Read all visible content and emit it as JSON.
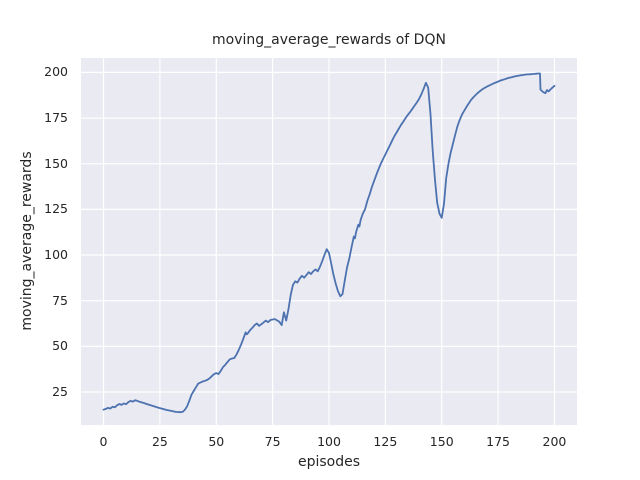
{
  "figure": {
    "title": "moving_average_rewards of DQN",
    "xlabel": "episodes",
    "ylabel": "moving_average_rewards"
  },
  "colors": {
    "figure_bg": "#ffffff",
    "axes_bg": "#eaeaf2",
    "grid": "#ffffff",
    "line": "#4c72b0",
    "text": "#262626"
  },
  "chart_data": {
    "type": "line",
    "title": "moving_average_rewards of DQN",
    "xlabel": "episodes",
    "ylabel": "moving_average_rewards",
    "xlim": [
      -10,
      210
    ],
    "ylim": [
      6.9,
      207.9
    ],
    "xticks": [
      0,
      25,
      50,
      75,
      100,
      125,
      150,
      175,
      200
    ],
    "yticks": [
      25,
      50,
      75,
      100,
      125,
      150,
      175,
      200
    ],
    "grid": true,
    "legend_position": "none",
    "series": [
      {
        "name": "moving_average_rewards",
        "color": "#4c72b0",
        "points": [
          [
            0,
            15.3
          ],
          [
            1,
            15.7
          ],
          [
            2,
            16.3
          ],
          [
            3,
            15.9
          ],
          [
            4,
            16.9
          ],
          [
            5,
            16.6
          ],
          [
            6,
            17.7
          ],
          [
            7,
            18.4
          ],
          [
            8,
            17.9
          ],
          [
            9,
            18.7
          ],
          [
            10,
            18.3
          ],
          [
            11,
            19.4
          ],
          [
            12,
            20.1
          ],
          [
            13,
            19.7
          ],
          [
            14,
            20.5
          ],
          [
            15,
            20.1
          ],
          [
            16,
            19.6
          ],
          [
            18,
            18.9
          ],
          [
            20,
            18.1
          ],
          [
            22,
            17.3
          ],
          [
            24,
            16.5
          ],
          [
            26,
            15.8
          ],
          [
            28,
            15.1
          ],
          [
            30,
            14.6
          ],
          [
            32,
            14.1
          ],
          [
            34,
            13.9
          ],
          [
            35,
            14.1
          ],
          [
            36,
            15.1
          ],
          [
            37,
            17.0
          ],
          [
            38,
            20.0
          ],
          [
            39,
            23.5
          ],
          [
            40,
            25.5
          ],
          [
            41,
            27.6
          ],
          [
            42,
            29.6
          ],
          [
            43,
            30.2
          ],
          [
            44,
            30.7
          ],
          [
            45,
            31.1
          ],
          [
            46,
            31.6
          ],
          [
            47,
            32.4
          ],
          [
            48,
            33.6
          ],
          [
            49,
            34.7
          ],
          [
            50,
            35.3
          ],
          [
            51,
            34.8
          ],
          [
            52,
            36.6
          ],
          [
            53,
            38.6
          ],
          [
            54,
            39.9
          ],
          [
            55,
            41.4
          ],
          [
            56,
            42.9
          ],
          [
            57,
            43.3
          ],
          [
            58,
            43.6
          ],
          [
            59,
            45.6
          ],
          [
            60,
            48.1
          ],
          [
            61,
            51.0
          ],
          [
            62,
            54.1
          ],
          [
            63,
            57.6
          ],
          [
            63.5,
            56.6
          ],
          [
            64,
            57.1
          ],
          [
            65,
            58.9
          ],
          [
            66,
            60.1
          ],
          [
            67,
            61.6
          ],
          [
            68,
            62.5
          ],
          [
            69,
            61.2
          ],
          [
            70,
            62.1
          ],
          [
            71,
            63.1
          ],
          [
            72,
            64.1
          ],
          [
            73,
            63.2
          ],
          [
            74,
            64.4
          ],
          [
            75,
            64.7
          ],
          [
            76,
            64.9
          ],
          [
            77,
            64.2
          ],
          [
            78,
            63.4
          ],
          [
            79,
            61.6
          ],
          [
            80,
            68.6
          ],
          [
            81,
            64.1
          ],
          [
            82,
            70.1
          ],
          [
            83,
            78.1
          ],
          [
            84,
            83.6
          ],
          [
            85,
            85.6
          ],
          [
            86,
            84.9
          ],
          [
            87,
            87.1
          ],
          [
            88,
            88.6
          ],
          [
            89,
            87.6
          ],
          [
            90,
            89.1
          ],
          [
            91,
            90.6
          ],
          [
            92,
            89.6
          ],
          [
            93,
            91.1
          ],
          [
            94,
            92.1
          ],
          [
            95,
            91.1
          ],
          [
            96,
            93.6
          ],
          [
            97,
            96.6
          ],
          [
            98,
            100.1
          ],
          [
            99,
            103.2
          ],
          [
            100,
            101.1
          ],
          [
            101,
            95.1
          ],
          [
            102,
            89.1
          ],
          [
            103,
            84.1
          ],
          [
            104,
            80.1
          ],
          [
            105,
            77.4
          ],
          [
            106,
            78.6
          ],
          [
            107,
            86.1
          ],
          [
            108,
            93.1
          ],
          [
            109,
            98.1
          ],
          [
            110,
            104.1
          ],
          [
            111,
            110.1
          ],
          [
            111.5,
            109.1
          ],
          [
            112,
            112.6
          ],
          [
            113,
            116.6
          ],
          [
            113.5,
            115.6
          ],
          [
            114,
            119.1
          ],
          [
            115,
            122.6
          ],
          [
            116,
            125.1
          ],
          [
            117,
            129.6
          ],
          [
            118,
            133.1
          ],
          [
            119,
            137.1
          ],
          [
            120,
            140.6
          ],
          [
            121,
            143.9
          ],
          [
            122,
            147.1
          ],
          [
            123,
            150.1
          ],
          [
            124,
            152.6
          ],
          [
            125,
            155.1
          ],
          [
            126,
            157.6
          ],
          [
            127,
            160.1
          ],
          [
            128,
            162.6
          ],
          [
            129,
            165.1
          ],
          [
            130,
            167.1
          ],
          [
            131,
            169.3
          ],
          [
            132,
            171.3
          ],
          [
            133,
            173.1
          ],
          [
            134,
            175.1
          ],
          [
            135,
            176.8
          ],
          [
            136,
            178.4
          ],
          [
            137,
            180.1
          ],
          [
            138,
            181.9
          ],
          [
            139,
            183.6
          ],
          [
            140,
            185.6
          ],
          [
            141,
            188.1
          ],
          [
            142,
            191.1
          ],
          [
            143,
            194.3
          ],
          [
            144,
            191.6
          ],
          [
            145,
            177.1
          ],
          [
            146,
            157.1
          ],
          [
            147,
            141.1
          ],
          [
            148,
            128.6
          ],
          [
            149,
            122.6
          ],
          [
            150,
            120.4
          ],
          [
            151,
            128.1
          ],
          [
            152,
            142.1
          ],
          [
            153,
            150.1
          ],
          [
            154,
            156.1
          ],
          [
            155,
            161.1
          ],
          [
            156,
            166.1
          ],
          [
            157,
            170.6
          ],
          [
            158,
            174.1
          ],
          [
            159,
            176.9
          ],
          [
            160,
            179.1
          ],
          [
            161,
            181.1
          ],
          [
            162,
            183.1
          ],
          [
            163,
            184.9
          ],
          [
            164,
            186.3
          ],
          [
            165,
            187.6
          ],
          [
            166,
            188.8
          ],
          [
            167,
            189.8
          ],
          [
            168,
            190.7
          ],
          [
            169,
            191.5
          ],
          [
            170,
            192.2
          ],
          [
            171,
            192.8
          ],
          [
            172,
            193.4
          ],
          [
            173,
            194.0
          ],
          [
            174,
            194.5
          ],
          [
            175,
            195.0
          ],
          [
            176,
            195.5
          ],
          [
            177,
            195.9
          ],
          [
            178,
            196.3
          ],
          [
            179,
            196.7
          ],
          [
            180,
            197.1
          ],
          [
            181,
            197.4
          ],
          [
            182,
            197.7
          ],
          [
            183,
            198.0
          ],
          [
            184,
            198.2
          ],
          [
            185,
            198.4
          ],
          [
            186,
            198.6
          ],
          [
            187,
            198.8
          ],
          [
            188,
            198.9
          ],
          [
            189,
            199.0
          ],
          [
            190,
            199.1
          ],
          [
            191,
            199.2
          ],
          [
            192,
            199.3
          ],
          [
            193,
            199.4
          ],
          [
            193.6,
            199.4
          ],
          [
            193.8,
            190.6
          ],
          [
            195,
            189.2
          ],
          [
            196,
            188.6
          ],
          [
            196.7,
            190.3
          ],
          [
            197.4,
            189.6
          ],
          [
            198,
            190.4
          ],
          [
            199,
            191.6
          ],
          [
            200,
            192.7
          ]
        ]
      }
    ]
  }
}
